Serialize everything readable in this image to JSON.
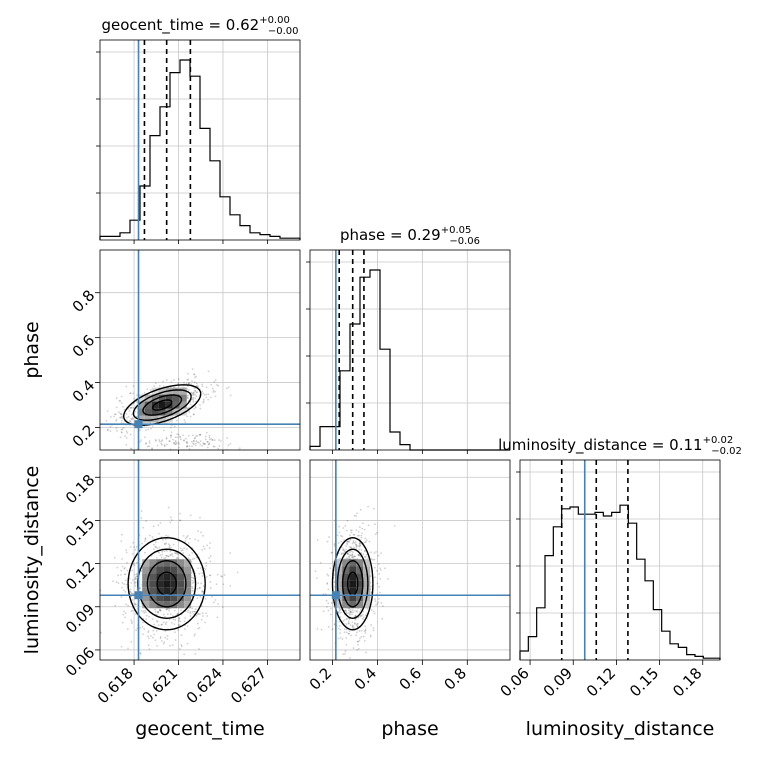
{
  "chart_data": {
    "type": "corner",
    "parameters": [
      "geocent_time",
      "phase",
      "luminosity_distance"
    ],
    "axis_labels": {
      "geocent_time": "geocent_time",
      "phase": "phase",
      "luminosity_distance": "luminosity_distance"
    },
    "titles": [
      {
        "param": "geocent_time",
        "text": "geocent_time = 0.62",
        "plus": "+0.00",
        "minus": "−0.00"
      },
      {
        "param": "phase",
        "text": "phase = 0.29",
        "plus": "+0.05",
        "minus": "−0.06"
      },
      {
        "param": "luminosity_distance",
        "text": "luminosity_distance = 0.11",
        "plus": "+0.02",
        "minus": "−0.02"
      }
    ],
    "ranges": {
      "geocent_time": [
        0.6157,
        0.6292
      ],
      "phase": [
        0.1,
        0.99
      ],
      "luminosity_distance": [
        0.053,
        0.192
      ]
    },
    "ticks": {
      "geocent_time": [
        0.618,
        0.621,
        0.624,
        0.627
      ],
      "phase": [
        0.2,
        0.4,
        0.6,
        0.8
      ],
      "luminosity_distance": [
        0.06,
        0.09,
        0.12,
        0.15,
        0.18
      ]
    },
    "tick_labels": {
      "geocent_time": [
        "0.618",
        "0.621",
        "0.624",
        "0.627"
      ],
      "phase": [
        "0.2",
        "0.4",
        "0.6",
        "0.8"
      ],
      "luminosity_distance": [
        "0.06",
        "0.09",
        "0.12",
        "0.15",
        "0.18"
      ]
    },
    "truths": {
      "geocent_time": 0.6183,
      "phase": 0.215,
      "luminosity_distance": 0.098
    },
    "quantiles": {
      "geocent_time": [
        0.6187,
        0.6202,
        0.6218
      ],
      "phase": [
        0.23,
        0.29,
        0.34
      ],
      "luminosity_distance": [
        0.082,
        0.106,
        0.128
      ]
    },
    "histograms": {
      "geocent_time": [
        0.02,
        0.02,
        0.04,
        0.11,
        0.3,
        0.58,
        0.74,
        0.93,
        1.0,
        0.91,
        0.62,
        0.44,
        0.24,
        0.14,
        0.08,
        0.04,
        0.03,
        0.02,
        0.01,
        0.01
      ],
      "phase": [
        0.02,
        0.13,
        0.13,
        0.44,
        0.7,
        0.96,
        1.0,
        0.56,
        0.1,
        0.03,
        0.0,
        0.0,
        0.0,
        0.0,
        0.0,
        0.0,
        0.0,
        0.0,
        0.0,
        0.0
      ],
      "luminosity_distance": [
        0.05,
        0.13,
        0.29,
        0.58,
        0.74,
        0.84,
        0.85,
        0.81,
        0.81,
        0.82,
        0.8,
        0.82,
        0.86,
        0.76,
        0.56,
        0.44,
        0.28,
        0.16,
        0.09,
        0.07,
        0.03,
        0.02,
        0.01,
        0.01
      ]
    },
    "densities": [
      {
        "x": "geocent_time",
        "y": "phase",
        "center": [
          0.6199,
          0.3
        ],
        "spread": [
          0.0013,
          0.045
        ],
        "rho": 0.55,
        "secondary": {
          "center": [
            0.6215,
            0.14
          ],
          "spread": [
            0.0016,
            0.02
          ],
          "weight": 0.15
        }
      },
      {
        "x": "geocent_time",
        "y": "luminosity_distance",
        "center": [
          0.6202,
          0.106
        ],
        "spread": [
          0.0013,
          0.016
        ],
        "rho": 0.0
      },
      {
        "x": "phase",
        "y": "luminosity_distance",
        "center": [
          0.29,
          0.106
        ],
        "spread": [
          0.045,
          0.016
        ],
        "rho": 0.0
      }
    ],
    "colors": {
      "truth": "#4682b4",
      "hist": "#000000",
      "quantile": "#000000",
      "grid": "#c8c8c8",
      "points": "#000000"
    },
    "grid": true
  }
}
